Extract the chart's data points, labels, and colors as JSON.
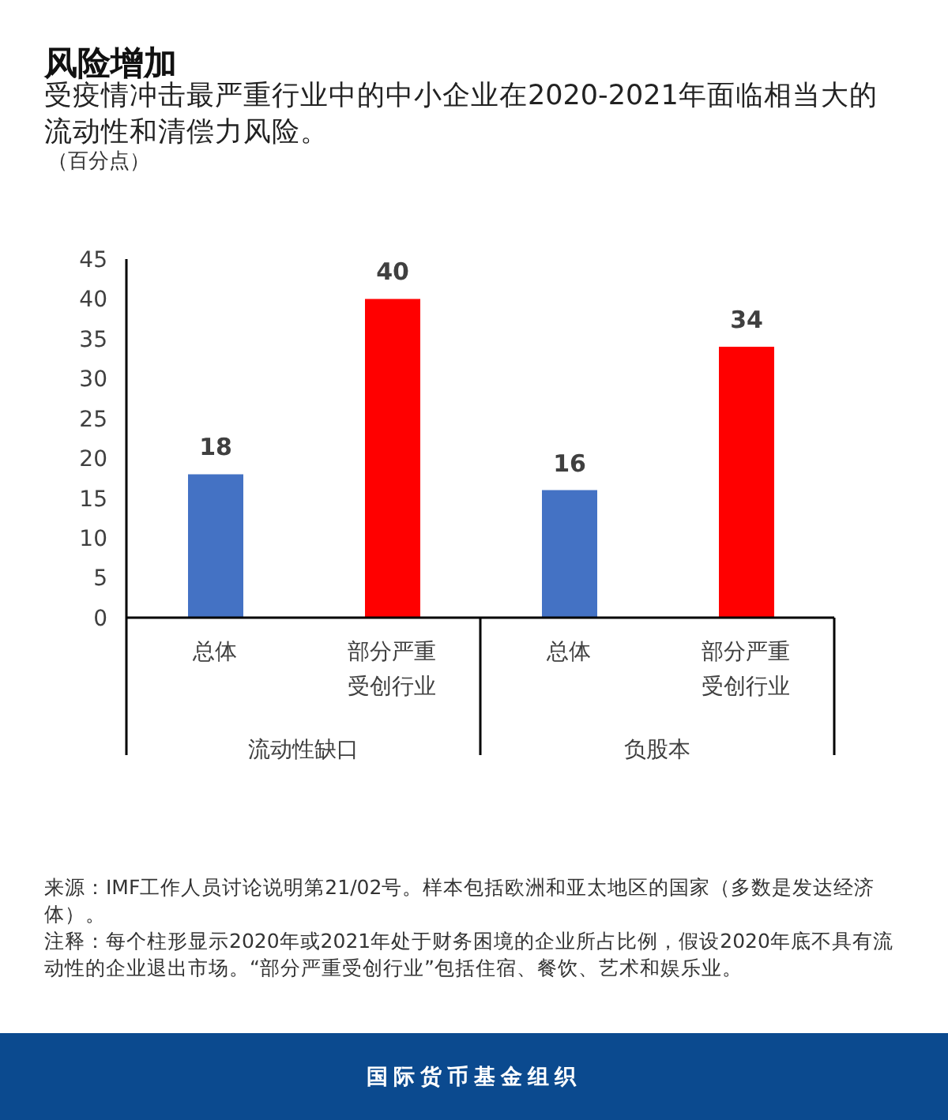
{
  "chart_data": {
    "type": "bar",
    "title": "风险增加",
    "subtitle": "受疫情冲击最严重行业中的中小企业在2020-2021年面临相当大的流动性和清偿力风险。",
    "ylabel": "（百分点）",
    "categories": [
      "总体",
      "部分严重受创行业",
      "总体",
      "部分严重受创行业"
    ],
    "values": [
      18,
      40,
      16,
      34
    ],
    "colors": [
      "#4472c4",
      "#ff0000",
      "#4472c4",
      "#ff0000"
    ],
    "ylim": [
      0,
      45
    ],
    "yticks": [
      0,
      5,
      10,
      15,
      20,
      25,
      30,
      35,
      40,
      45
    ],
    "data_labels": true,
    "annotations": [
      "流动性缺口",
      "负股本",
      "来源：IMF工作人员讨论说明第21/02号。样本包括欧洲和亚太地区的国家（多数是发达经济体）。",
      "注释：每个柱形显示2020年或2021年处于财务困境的企业所占比例，假设2020年底不具有流动性的企业退出市场。“部分严重受创行业”包括住宿、餐饮、艺术和娱乐业。",
      "国际货币基金组织"
    ]
  }
}
